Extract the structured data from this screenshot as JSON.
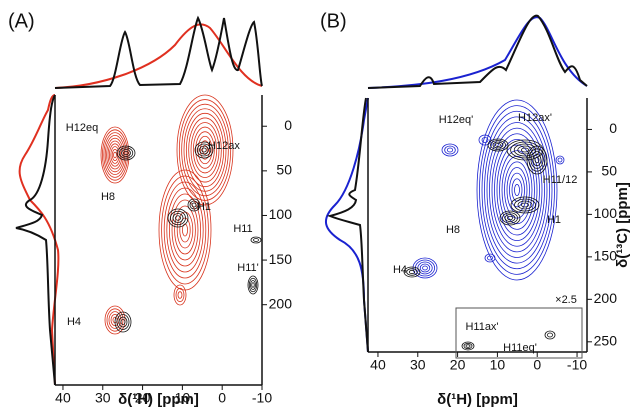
{
  "chart_data": [
    {
      "type": "contour",
      "panel_label": "(A)",
      "xlabel": "δ(¹H) [ppm]",
      "xlim": [
        42,
        -10
      ],
      "ylim": [
        -35,
        290
      ],
      "xticks": [
        40,
        30,
        20,
        10,
        0,
        -10
      ],
      "yticks": [
        0,
        50,
        100,
        150,
        200
      ],
      "annotations": [
        "H12eq",
        "H12ax",
        "H8",
        "H1",
        "H11",
        "H11'",
        "H4"
      ]
    },
    {
      "type": "contour",
      "panel_label": "(B)",
      "xlabel": "δ(¹H) [ppm]",
      "ylabel": "δ(¹³C) [ppm]",
      "xlim": [
        42.5,
        -12.5
      ],
      "ylim": [
        -37,
        262
      ],
      "xticks": [
        40,
        30,
        20,
        10,
        0,
        -10
      ],
      "yticks": [
        0,
        50,
        100,
        150,
        200,
        250
      ],
      "annotations": [
        "H12eq'",
        "H12ax'",
        "H11/12",
        "H1",
        "H8",
        "H4",
        "H11ax'",
        "H11eq'",
        "×2.5"
      ]
    }
  ]
}
